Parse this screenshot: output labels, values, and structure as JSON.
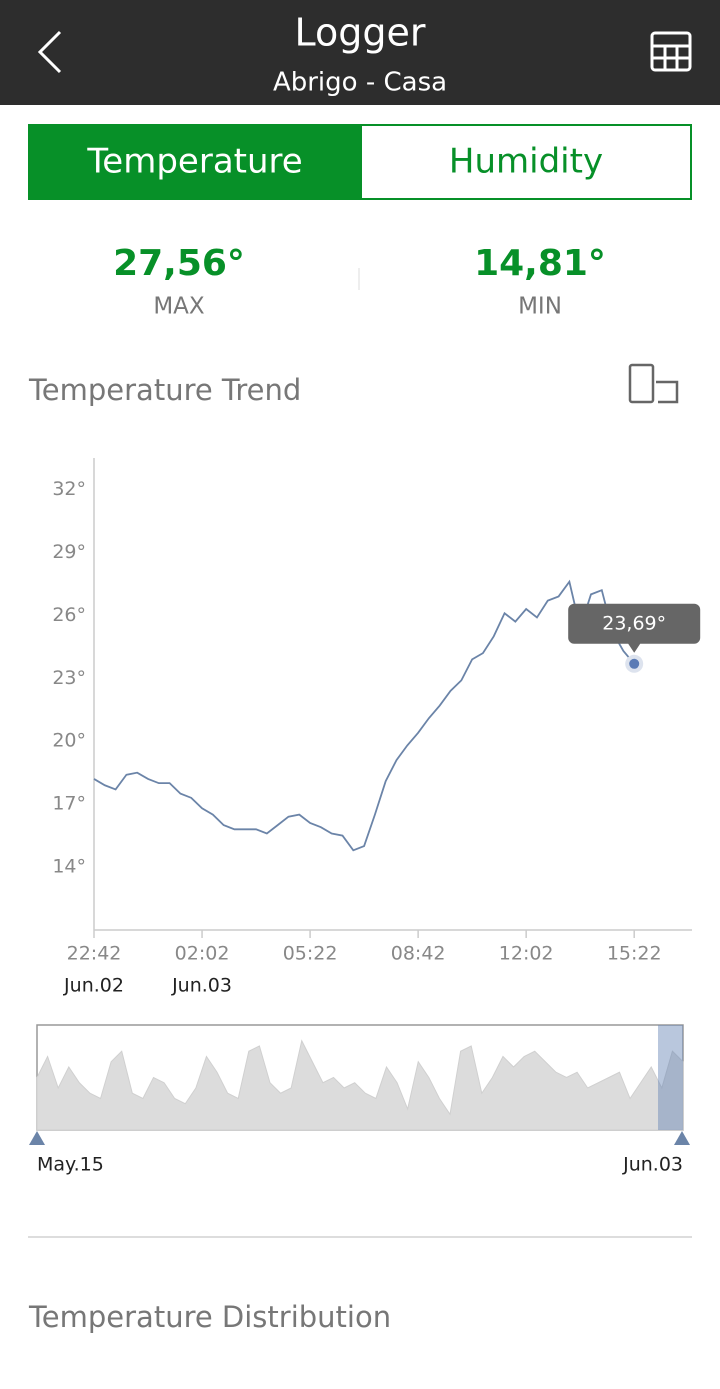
{
  "header": {
    "title": "Logger",
    "subtitle": "Abrigo - Casa"
  },
  "tabs": [
    "Temperature",
    "Humidity"
  ],
  "stats": {
    "max": {
      "value": "27,56°",
      "label": "MAX"
    },
    "min": {
      "value": "14,81°",
      "label": "MIN"
    }
  },
  "trend_title": "Temperature Trend",
  "chart_data": {
    "type": "line",
    "color": "#6b84a8",
    "x": [
      1362,
      1382,
      1402,
      1422,
      1442,
      1462,
      1482,
      1502,
      1522,
      1542,
      1562,
      1582,
      1602,
      1622,
      1642,
      1662,
      1682,
      1702,
      1722,
      1742,
      1762,
      1782,
      1802,
      1822,
      1842,
      1862,
      1882,
      1902,
      1922,
      1942,
      1962,
      1982,
      2002,
      2022,
      2042,
      2062,
      2082,
      2102,
      2122,
      2142,
      2162,
      2182,
      2202,
      2222,
      2242,
      2262,
      2282,
      2302,
      2322,
      2342,
      2362
    ],
    "values": [
      18.2,
      17.9,
      17.7,
      18.4,
      18.5,
      18.2,
      18.0,
      18.0,
      17.5,
      17.3,
      16.8,
      16.5,
      16.0,
      15.8,
      15.8,
      15.8,
      15.6,
      16.0,
      16.4,
      16.5,
      16.1,
      15.9,
      15.6,
      15.5,
      14.8,
      15.0,
      16.5,
      18.1,
      19.1,
      19.8,
      20.4,
      21.1,
      21.7,
      22.4,
      22.9,
      23.9,
      24.2,
      25.0,
      26.1,
      25.7,
      26.3,
      25.9,
      26.7,
      26.9,
      27.6,
      25.4,
      27.0,
      27.2,
      25.2,
      24.3,
      23.69
    ],
    "tooltip_label": "23,69°",
    "xlim": [
      1362,
      2469
    ],
    "ylim": [
      11,
      33.5
    ],
    "xticks": [
      {
        "value": 1362,
        "label": "22:42"
      },
      {
        "value": 1562,
        "label": "02:02"
      },
      {
        "value": 1762,
        "label": "05:22"
      },
      {
        "value": 1962,
        "label": "08:42"
      },
      {
        "value": 2162,
        "label": "12:02"
      },
      {
        "value": 2362,
        "label": "15:22"
      }
    ],
    "xtick_dates": [
      {
        "value": 1362,
        "label": "Jun.02"
      },
      {
        "value": 1562,
        "label": "Jun.03"
      }
    ],
    "yticks": [
      {
        "value": 14,
        "label": "14°"
      },
      {
        "value": 17,
        "label": "17°"
      },
      {
        "value": 20,
        "label": "20°"
      },
      {
        "value": 23,
        "label": "23°"
      },
      {
        "value": 26,
        "label": "26°"
      },
      {
        "value": 29,
        "label": "29°"
      },
      {
        "value": 32,
        "label": "32°"
      }
    ],
    "grid": false
  },
  "navigator": {
    "start_label": "May.15",
    "end_label": "Jun.03",
    "ylim": [
      10,
      30
    ],
    "values": [
      20,
      24,
      18,
      22,
      19,
      17,
      16,
      23,
      25,
      17,
      16,
      20,
      19,
      16,
      15,
      18,
      24,
      21,
      17,
      16,
      25,
      26,
      19,
      17,
      18,
      27,
      23,
      19,
      20,
      18,
      19,
      17,
      16,
      22,
      19,
      14,
      23,
      20,
      16,
      13,
      25,
      26,
      17,
      20,
      24,
      22,
      24,
      25,
      23,
      21,
      20,
      21,
      18,
      19,
      20,
      21,
      16,
      19,
      22,
      18,
      25,
      23
    ]
  },
  "distribution_title": "Temperature Distribution"
}
